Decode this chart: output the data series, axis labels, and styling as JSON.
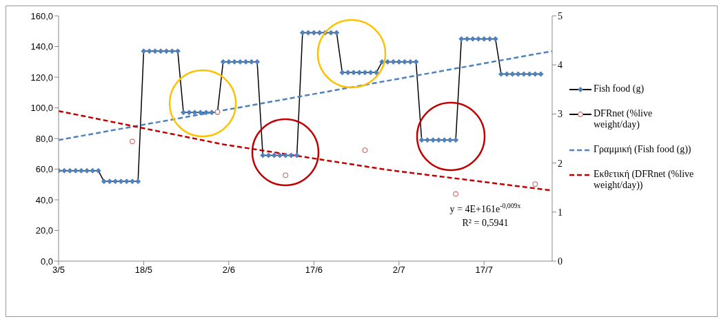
{
  "chart_data": {
    "type": "line",
    "x": [
      "--05-03",
      "--05-04",
      "--05-05",
      "--05-06",
      "--05-07",
      "--05-08",
      "--05-09",
      "--05-10",
      "--05-11",
      "--05-12",
      "--05-13",
      "--05-14",
      "--05-15",
      "--05-16",
      "--05-17",
      "--05-18",
      "--05-19",
      "--05-20",
      "--05-21",
      "--05-22",
      "--05-23",
      "--05-24",
      "--05-25",
      "--05-26",
      "--05-27",
      "--05-28",
      "--05-29",
      "--05-30",
      "--05-31",
      "--06-01",
      "--06-02",
      "--06-03",
      "--06-04",
      "--06-05",
      "--06-06",
      "--06-07",
      "--06-08",
      "--06-09",
      "--06-10",
      "--06-11",
      "--06-12",
      "--06-13",
      "--06-14",
      "--06-15",
      "--06-16",
      "--06-17",
      "--06-18",
      "--06-19",
      "--06-20",
      "--06-21",
      "--06-22",
      "--06-23",
      "--06-24",
      "--06-25",
      "--06-26",
      "--06-27",
      "--06-28",
      "--06-29",
      "--06-30",
      "--07-01",
      "--07-02",
      "--07-03",
      "--07-04",
      "--07-05",
      "--07-06",
      "--07-07",
      "--07-08",
      "--07-09",
      "--07-10",
      "--07-11",
      "--07-12",
      "--07-13",
      "--07-14",
      "--07-15",
      "--07-16",
      "--07-17",
      "--07-18",
      "--07-19",
      "--07-20",
      "--07-21",
      "--07-22",
      "--07-23",
      "--07-24",
      "--07-25",
      "--07-26",
      "--07-27"
    ],
    "series": [
      {
        "name": "Fish food (g)",
        "type": "line",
        "color": "#4f81bd",
        "marker": "diamond",
        "line_style": "solid",
        "values": [
          59,
          59,
          59,
          59,
          59,
          59,
          59,
          59,
          52,
          52,
          52,
          52,
          52,
          52,
          52,
          137,
          137,
          137,
          137,
          137,
          137,
          137,
          97,
          97,
          97,
          97,
          97,
          97,
          97,
          130,
          130,
          130,
          130,
          130,
          130,
          130,
          69,
          69,
          69,
          69,
          69,
          69,
          69,
          149,
          149,
          149,
          149,
          149,
          149,
          149,
          123,
          123,
          123,
          123,
          123,
          123,
          123,
          130,
          130,
          130,
          130,
          130,
          130,
          130,
          79,
          79,
          79,
          79,
          79,
          79,
          79,
          145,
          145,
          145,
          145,
          145,
          145,
          145,
          122,
          122,
          122,
          122,
          122,
          122,
          122,
          122
        ]
      },
      {
        "name": "DFRnet (%live weight/day)",
        "type": "scatter",
        "axis": "y2",
        "color": "#c0504d",
        "marker": "circle",
        "x": [
          "--05-16",
          "--05-31",
          "--06-12",
          "--06-26",
          "--07-12",
          "--07-26"
        ],
        "values": [
          2.44,
          3.04,
          1.75,
          2.26,
          1.37,
          1.57
        ]
      },
      {
        "name": "Γραμμική (Fish food (g))",
        "type": "line",
        "color": "#4f81bd",
        "marker": "none",
        "line_style": "dashed",
        "x": [
          "--05-03",
          "--07-29"
        ],
        "values": [
          79,
          137
        ]
      },
      {
        "name": "Εκθετική (DFRnet (%live weight/day))",
        "type": "line",
        "axis": "y2",
        "color": "#c00000",
        "marker": "none",
        "line_style": "dashed",
        "x": [
          "--05-03",
          "--06-01",
          "--06-30",
          "--07-29"
        ],
        "values": [
          3.06,
          2.38,
          1.86,
          1.44
        ]
      }
    ],
    "xlim": [
      "--05-03",
      "--07-29"
    ],
    "xticks": [
      {
        "value": "--05-03",
        "label": "3/5"
      },
      {
        "value": "--05-18",
        "label": "18/5"
      },
      {
        "value": "--06-02",
        "label": "2/6"
      },
      {
        "value": "--06-17",
        "label": "17/6"
      },
      {
        "value": "--07-02",
        "label": "2/7"
      },
      {
        "value": "--07-17",
        "label": "17/7"
      }
    ],
    "ylim": [
      0,
      160
    ],
    "yticks": [
      {
        "value": 0,
        "label": "0,0"
      },
      {
        "value": 20,
        "label": "20,0"
      },
      {
        "value": 40,
        "label": "40,0"
      },
      {
        "value": 60,
        "label": "60,0"
      },
      {
        "value": 80,
        "label": "80,0"
      },
      {
        "value": 100,
        "label": "100,0"
      },
      {
        "value": 120,
        "label": "120,0"
      },
      {
        "value": 140,
        "label": "140,0"
      },
      {
        "value": 160,
        "label": "160,0"
      }
    ],
    "y2lim": [
      0,
      5
    ],
    "y2ticks": [
      0,
      1,
      2,
      3,
      4,
      5
    ],
    "grid": false,
    "legend": "right",
    "annotations": [
      "y = 4E+161e$^{-0,009x}$",
      "R² = 0,5941"
    ]
  }
}
